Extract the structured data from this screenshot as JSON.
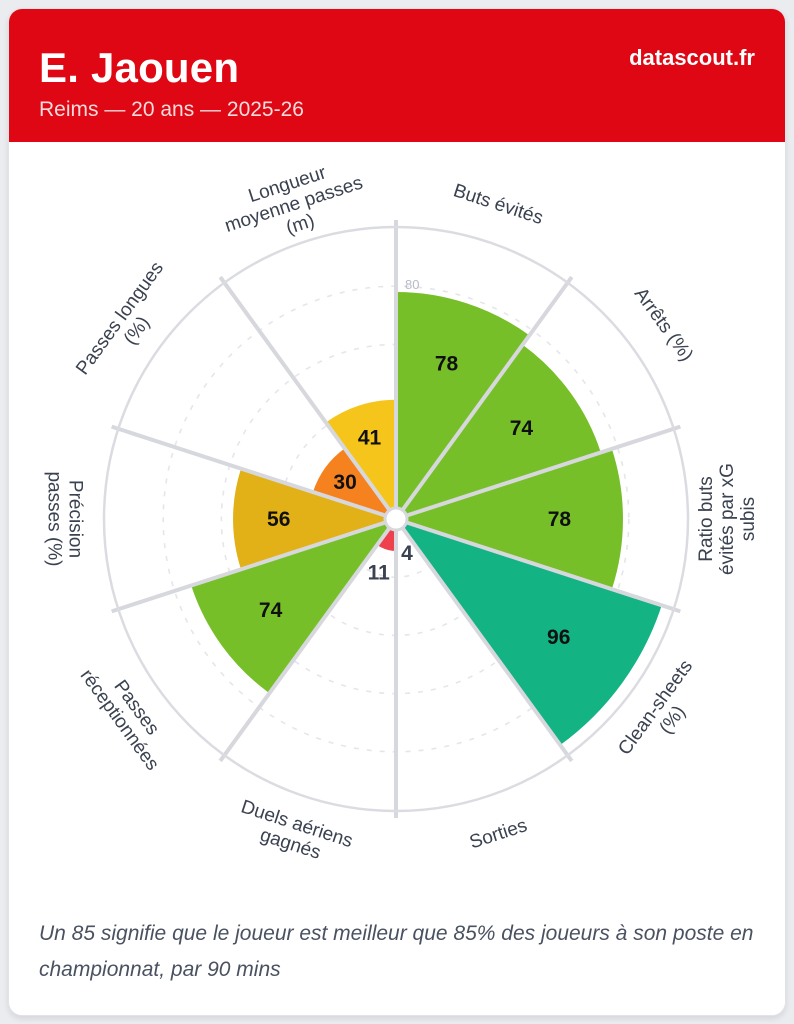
{
  "header": {
    "player_name": "E. Jaouen",
    "subtitle": "Reims — 20 ans — 2025-26",
    "brand": "datascout.fr",
    "background_color": "#DF0713"
  },
  "chart_data": {
    "type": "pizza",
    "description": "Polar percentile bar (pizza) chart, 10 slices, clockwise from top",
    "scale": {
      "min": 0,
      "max": 100,
      "gridlines": [
        20,
        40,
        60,
        80
      ],
      "tick_label": "80",
      "tick_value": 80
    },
    "categories": [
      "Buts évités",
      "Arrêts (%)",
      "Ratio buts évités par xG subis",
      "Clean-sheets (%)",
      "Sorties",
      "Duels aériens gagnés",
      "Passes réceptionnées",
      "Précision passes (%)",
      "Passes longues (%)",
      "Longueur moyenne passes (m)"
    ],
    "values": [
      78,
      74,
      78,
      96,
      4,
      11,
      74,
      56,
      30,
      41
    ],
    "slices": [
      {
        "label_lines": [
          "Buts évités"
        ],
        "value": 78,
        "color": "#77BF29",
        "label_rotation": 18
      },
      {
        "label_lines": [
          "Arrêts (%)"
        ],
        "value": 74,
        "color": "#77BF29",
        "label_rotation": 54
      },
      {
        "label_lines": [
          "Ratio buts",
          "évités par xG",
          "subis"
        ],
        "value": 78,
        "color": "#77BF29",
        "label_rotation": -90
      },
      {
        "label_lines": [
          "Clean-sheets",
          "(%)"
        ],
        "value": 96,
        "color": "#13B383",
        "label_rotation": -54
      },
      {
        "label_lines": [
          "Sorties"
        ],
        "value": 4,
        "color": "#EF404D",
        "label_rotation": -18
      },
      {
        "label_lines": [
          "Duels aériens",
          "gagnés"
        ],
        "value": 11,
        "color": "#EF404D",
        "label_rotation": 18
      },
      {
        "label_lines": [
          "Passes",
          "réceptionnées"
        ],
        "value": 74,
        "color": "#77BF29",
        "label_rotation": 54
      },
      {
        "label_lines": [
          "Précision",
          "passes (%)"
        ],
        "value": 56,
        "color": "#E2B117",
        "label_rotation": 90
      },
      {
        "label_lines": [
          "Passes longues",
          "(%)"
        ],
        "value": 30,
        "color": "#F5821F",
        "label_rotation": -54
      },
      {
        "label_lines": [
          "Longueur",
          "moyenne passes",
          "(m)"
        ],
        "value": 41,
        "color": "#F6C51C",
        "label_rotation": -18
      }
    ],
    "styles": {
      "grid_color": "#E5E6EB",
      "spoke_color": "#D7D8DD",
      "ring_color": "#DBDCE1",
      "hub_fill": "#FFFFFF",
      "tick_color": "#B7BBC4",
      "value_label_inside_color": "#101010",
      "value_label_outside_color": "#3A4150",
      "category_label_color": "#3A4150"
    }
  },
  "footer": {
    "note": "Un 85 signifie que le joueur est meilleur que 85% des joueurs à son poste en championnat, par 90 mins"
  }
}
